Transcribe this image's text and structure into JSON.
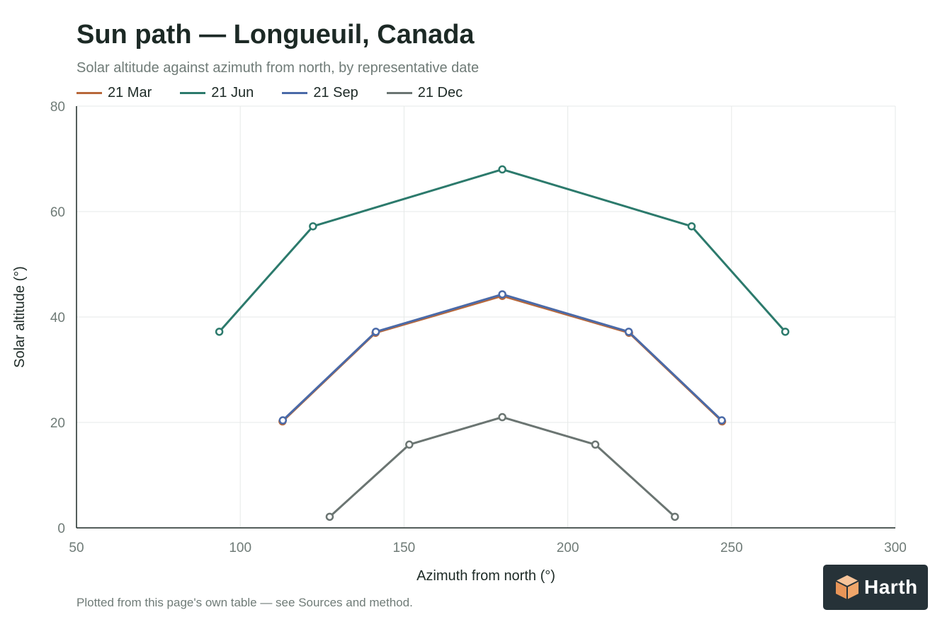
{
  "title": "Sun path — Longueuil, Canada",
  "subtitle": "Solar altitude against azimuth from north, by representative date",
  "footnote": "Plotted from this page's own table — see Sources and method.",
  "logo": {
    "name": "Harth",
    "icon": "cube-icon",
    "color": "#f0a66a"
  },
  "chart_data": {
    "type": "line",
    "xlabel": "Azimuth from north (°)",
    "ylabel": "Solar altitude (°)",
    "xlim": [
      50,
      300
    ],
    "ylim": [
      0,
      80
    ],
    "xticks": [
      50,
      100,
      150,
      200,
      250,
      300
    ],
    "yticks": [
      0,
      20,
      40,
      60,
      80
    ],
    "grid": true,
    "legend": "top-left",
    "series": [
      {
        "name": "21 Mar",
        "color": "#b8683a",
        "x": [
          112.9,
          141.3,
          180,
          218.7,
          247.1
        ],
        "y": [
          20.2,
          37.0,
          44.0,
          37.0,
          20.2
        ]
      },
      {
        "name": "21 Jun",
        "color": "#2c7a6c",
        "x": [
          93.6,
          122.2,
          180,
          237.8,
          266.4
        ],
        "y": [
          37.2,
          57.2,
          68.0,
          57.2,
          37.2
        ]
      },
      {
        "name": "21 Sep",
        "color": "#4a6aa8",
        "x": [
          113.0,
          141.4,
          180,
          218.6,
          247.0
        ],
        "y": [
          20.4,
          37.2,
          44.3,
          37.2,
          20.4
        ]
      },
      {
        "name": "21 Dec",
        "color": "#6b7572",
        "x": [
          127.3,
          151.6,
          180,
          208.4,
          232.7
        ],
        "y": [
          2.1,
          15.8,
          21.0,
          15.8,
          2.1
        ]
      }
    ]
  }
}
